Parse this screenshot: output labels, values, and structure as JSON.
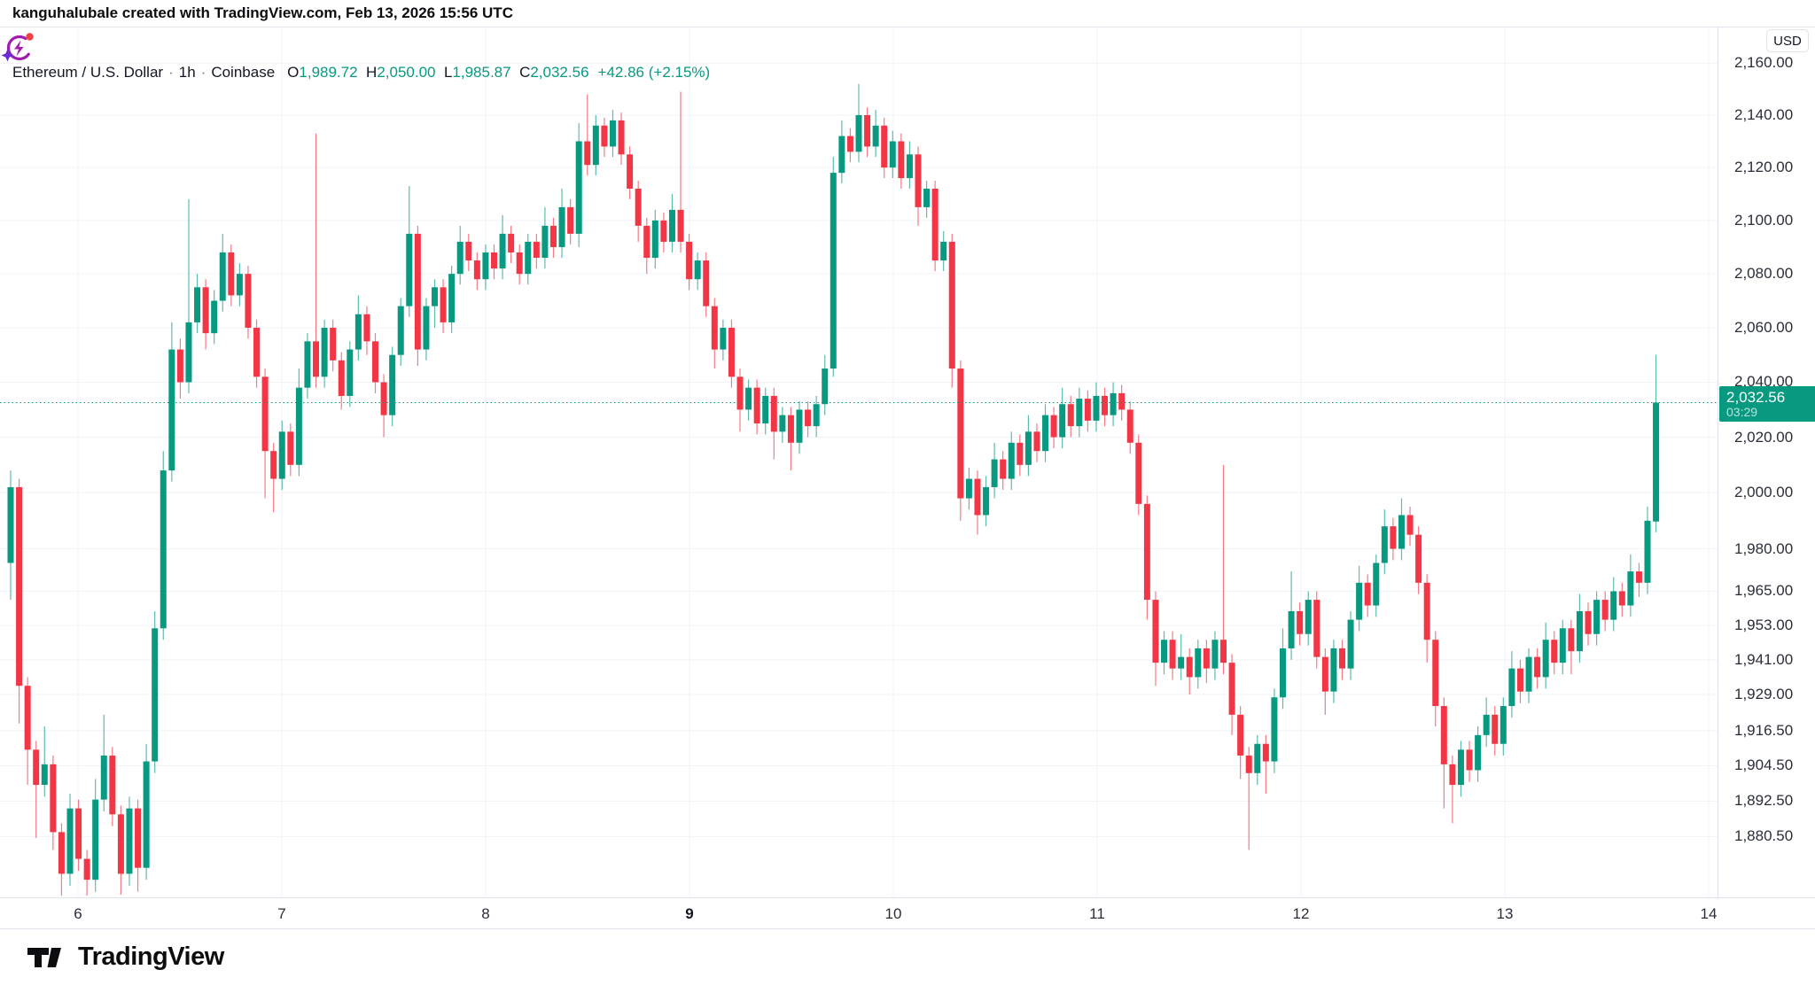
{
  "attribution": "kanguhalubale created with TradingView.com, Feb 13, 2026 15:56 UTC",
  "legend": {
    "symbol": "Ethereum / U.S. Dollar",
    "interval": "1h",
    "exchange": "Coinbase",
    "sep": "·",
    "o_key": "O",
    "o_val": "1,989.72",
    "h_key": "H",
    "h_val": "2,050.00",
    "l_key": "L",
    "l_val": "1,985.87",
    "c_key": "C",
    "c_val": "2,032.56",
    "change": "+42.86 (+2.15%)"
  },
  "price_axis": {
    "currency_label": "USD",
    "last_price_label": "2,032.56",
    "countdown": "03:29"
  },
  "footer": {
    "logo_text": "TradingView"
  },
  "colors": {
    "up": "#089981",
    "down": "#f23645",
    "grid": "#f0f3fa",
    "border": "#e0e3eb",
    "axis_text": "#2a2e39",
    "badge_bg": "#089981",
    "dotted_line": "#089981"
  },
  "chart_data": {
    "type": "candlestick",
    "title": "Ethereum / U.S. Dollar · 1h · Coinbase",
    "scale": "log",
    "legend_position": "top-left",
    "grid": true,
    "last_price": 2032.56,
    "y_ticks": [
      {
        "label": "2,160.00",
        "price": 2160
      },
      {
        "label": "2,140.00",
        "price": 2140
      },
      {
        "label": "2,120.00",
        "price": 2120
      },
      {
        "label": "2,100.00",
        "price": 2100
      },
      {
        "label": "2,080.00",
        "price": 2080
      },
      {
        "label": "2,060.00",
        "price": 2060
      },
      {
        "label": "2,040.00",
        "price": 2040
      },
      {
        "label": "2,020.00",
        "price": 2020
      },
      {
        "label": "2,000.00",
        "price": 2000
      },
      {
        "label": "1,980.00",
        "price": 1980
      },
      {
        "label": "1,965.00",
        "price": 1965
      },
      {
        "label": "1,953.00",
        "price": 1953
      },
      {
        "label": "1,941.00",
        "price": 1941
      },
      {
        "label": "1,929.00",
        "price": 1929
      },
      {
        "label": "1,916.50",
        "price": 1916.5
      },
      {
        "label": "1,904.50",
        "price": 1904.5
      },
      {
        "label": "1,892.50",
        "price": 1892.5
      },
      {
        "label": "1,880.50",
        "price": 1880.5
      }
    ],
    "x_ticks": [
      {
        "label": "6",
        "bold": false
      },
      {
        "label": "7",
        "bold": false
      },
      {
        "label": "8",
        "bold": false
      },
      {
        "label": "9",
        "bold": true
      },
      {
        "label": "10",
        "bold": false
      },
      {
        "label": "11",
        "bold": false
      },
      {
        "label": "12",
        "bold": false
      },
      {
        "label": "13",
        "bold": false
      },
      {
        "label": "14",
        "bold": false
      }
    ],
    "candles": [
      [
        1975,
        2008,
        1962,
        2002
      ],
      [
        2002,
        2005,
        1919,
        1932
      ],
      [
        1932,
        1935,
        1898,
        1910
      ],
      [
        1910,
        1913,
        1880,
        1898
      ],
      [
        1898,
        1918,
        1894,
        1905
      ],
      [
        1905,
        1908,
        1876,
        1882
      ],
      [
        1882,
        1885,
        1860,
        1868
      ],
      [
        1868,
        1895,
        1864,
        1890
      ],
      [
        1890,
        1893,
        1869,
        1873
      ],
      [
        1873,
        1876,
        1858,
        1866
      ],
      [
        1866,
        1900,
        1862,
        1893
      ],
      [
        1893,
        1922,
        1889,
        1908
      ],
      [
        1908,
        1911,
        1884,
        1888
      ],
      [
        1888,
        1891,
        1861,
        1868
      ],
      [
        1868,
        1894,
        1864,
        1890
      ],
      [
        1890,
        1893,
        1862,
        1870
      ],
      [
        1870,
        1912,
        1866,
        1906
      ],
      [
        1906,
        1958,
        1902,
        1952
      ],
      [
        1952,
        2015,
        1948,
        2008
      ],
      [
        2008,
        2062,
        2004,
        2052
      ],
      [
        2052,
        2056,
        2034,
        2040
      ],
      [
        2040,
        2108,
        2036,
        2062
      ],
      [
        2062,
        2080,
        2058,
        2075
      ],
      [
        2075,
        2078,
        2052,
        2058
      ],
      [
        2058,
        2074,
        2054,
        2070
      ],
      [
        2070,
        2095,
        2066,
        2088
      ],
      [
        2088,
        2091,
        2068,
        2072
      ],
      [
        2072,
        2084,
        2068,
        2080
      ],
      [
        2080,
        2083,
        2056,
        2060
      ],
      [
        2060,
        2063,
        2038,
        2042
      ],
      [
        2042,
        2045,
        1998,
        2015
      ],
      [
        2015,
        2018,
        1993,
        2005
      ],
      [
        2005,
        2026,
        2001,
        2022
      ],
      [
        2022,
        2025,
        2006,
        2010
      ],
      [
        2010,
        2045,
        2006,
        2038
      ],
      [
        2038,
        2058,
        2034,
        2055
      ],
      [
        2055,
        2133,
        2038,
        2042
      ],
      [
        2042,
        2063,
        2038,
        2060
      ],
      [
        2060,
        2063,
        2044,
        2048
      ],
      [
        2048,
        2051,
        2030,
        2035
      ],
      [
        2035,
        2055,
        2031,
        2052
      ],
      [
        2052,
        2072,
        2048,
        2065
      ],
      [
        2065,
        2068,
        2050,
        2055
      ],
      [
        2055,
        2058,
        2036,
        2040
      ],
      [
        2040,
        2043,
        2020,
        2028
      ],
      [
        2028,
        2053,
        2024,
        2050
      ],
      [
        2050,
        2071,
        2046,
        2068
      ],
      [
        2068,
        2113,
        2064,
        2095
      ],
      [
        2095,
        2098,
        2046,
        2052
      ],
      [
        2052,
        2071,
        2048,
        2068
      ],
      [
        2068,
        2078,
        2060,
        2075
      ],
      [
        2075,
        2078,
        2058,
        2062
      ],
      [
        2062,
        2083,
        2058,
        2080
      ],
      [
        2080,
        2098,
        2076,
        2092
      ],
      [
        2092,
        2095,
        2081,
        2085
      ],
      [
        2085,
        2088,
        2074,
        2078
      ],
      [
        2078,
        2091,
        2074,
        2088
      ],
      [
        2088,
        2091,
        2078,
        2082
      ],
      [
        2082,
        2102,
        2078,
        2095
      ],
      [
        2095,
        2098,
        2084,
        2088
      ],
      [
        2088,
        2091,
        2076,
        2080
      ],
      [
        2080,
        2095,
        2076,
        2092
      ],
      [
        2092,
        2095,
        2082,
        2086
      ],
      [
        2086,
        2105,
        2082,
        2098
      ],
      [
        2098,
        2101,
        2086,
        2090
      ],
      [
        2090,
        2112,
        2086,
        2105
      ],
      [
        2105,
        2108,
        2091,
        2095
      ],
      [
        2095,
        2137,
        2090,
        2130
      ],
      [
        2130,
        2148,
        2117,
        2121
      ],
      [
        2121,
        2140,
        2117,
        2136
      ],
      [
        2136,
        2139,
        2124,
        2128
      ],
      [
        2128,
        2142,
        2124,
        2138
      ],
      [
        2138,
        2141,
        2121,
        2125
      ],
      [
        2125,
        2128,
        2108,
        2112
      ],
      [
        2112,
        2115,
        2092,
        2098
      ],
      [
        2098,
        2101,
        2080,
        2086
      ],
      [
        2086,
        2104,
        2082,
        2100
      ],
      [
        2100,
        2103,
        2088,
        2092
      ],
      [
        2092,
        2110,
        2088,
        2104
      ],
      [
        2104,
        2149,
        2088,
        2092
      ],
      [
        2092,
        2095,
        2074,
        2078
      ],
      [
        2078,
        2088,
        2074,
        2085
      ],
      [
        2085,
        2088,
        2064,
        2068
      ],
      [
        2068,
        2071,
        2045,
        2052
      ],
      [
        2052,
        2063,
        2048,
        2060
      ],
      [
        2060,
        2063,
        2038,
        2042
      ],
      [
        2042,
        2045,
        2022,
        2030
      ],
      [
        2030,
        2041,
        2026,
        2038
      ],
      [
        2038,
        2041,
        2021,
        2025
      ],
      [
        2025,
        2038,
        2021,
        2035
      ],
      [
        2035,
        2038,
        2012,
        2022
      ],
      [
        2022,
        2031,
        2018,
        2028
      ],
      [
        2028,
        2031,
        2008,
        2018
      ],
      [
        2018,
        2033,
        2014,
        2030
      ],
      [
        2030,
        2033,
        2020,
        2024
      ],
      [
        2024,
        2035,
        2020,
        2032
      ],
      [
        2032,
        2050,
        2028,
        2045
      ],
      [
        2045,
        2124,
        2042,
        2118
      ],
      [
        2118,
        2138,
        2114,
        2132
      ],
      [
        2132,
        2135,
        2122,
        2126
      ],
      [
        2126,
        2152,
        2122,
        2140
      ],
      [
        2140,
        2143,
        2124,
        2128
      ],
      [
        2128,
        2142,
        2124,
        2136
      ],
      [
        2136,
        2139,
        2116,
        2120
      ],
      [
        2120,
        2134,
        2116,
        2130
      ],
      [
        2130,
        2133,
        2112,
        2116
      ],
      [
        2116,
        2130,
        2112,
        2125
      ],
      [
        2125,
        2128,
        2098,
        2105
      ],
      [
        2105,
        2115,
        2101,
        2112
      ],
      [
        2112,
        2115,
        2081,
        2085
      ],
      [
        2085,
        2096,
        2081,
        2092
      ],
      [
        2092,
        2095,
        2038,
        2045
      ],
      [
        2045,
        2048,
        1990,
        1998
      ],
      [
        1998,
        2009,
        1994,
        2005
      ],
      [
        2005,
        2008,
        1985,
        1992
      ],
      [
        1992,
        2006,
        1988,
        2002
      ],
      [
        2002,
        2018,
        1998,
        2012
      ],
      [
        2012,
        2015,
        2001,
        2005
      ],
      [
        2005,
        2022,
        2001,
        2018
      ],
      [
        2018,
        2021,
        2006,
        2010
      ],
      [
        2010,
        2028,
        2006,
        2022
      ],
      [
        2022,
        2025,
        2011,
        2015
      ],
      [
        2015,
        2032,
        2011,
        2028
      ],
      [
        2028,
        2031,
        2016,
        2020
      ],
      [
        2020,
        2038,
        2016,
        2032
      ],
      [
        2032,
        2035,
        2020,
        2024
      ],
      [
        2024,
        2038,
        2020,
        2034
      ],
      [
        2034,
        2037,
        2022,
        2026
      ],
      [
        2026,
        2040,
        2022,
        2035
      ],
      [
        2035,
        2038,
        2024,
        2028
      ],
      [
        2028,
        2040,
        2024,
        2036
      ],
      [
        2036,
        2039,
        2026,
        2030
      ],
      [
        2030,
        2033,
        2014,
        2018
      ],
      [
        2018,
        2021,
        1992,
        1996
      ],
      [
        1996,
        1999,
        1955,
        1962
      ],
      [
        1962,
        1965,
        1932,
        1940
      ],
      [
        1940,
        1951,
        1936,
        1948
      ],
      [
        1948,
        1951,
        1934,
        1938
      ],
      [
        1938,
        1950,
        1934,
        1942
      ],
      [
        1942,
        1945,
        1929,
        1935
      ],
      [
        1935,
        1948,
        1931,
        1945
      ],
      [
        1945,
        1948,
        1933,
        1938
      ],
      [
        1938,
        1951,
        1934,
        1948
      ],
      [
        1948,
        2010,
        1936,
        1940
      ],
      [
        1940,
        1943,
        1915,
        1922
      ],
      [
        1922,
        1925,
        1900,
        1908
      ],
      [
        1908,
        1911,
        1876,
        1902
      ],
      [
        1902,
        1915,
        1898,
        1912
      ],
      [
        1912,
        1915,
        1895,
        1906
      ],
      [
        1906,
        1931,
        1902,
        1928
      ],
      [
        1928,
        1952,
        1924,
        1945
      ],
      [
        1945,
        1972,
        1941,
        1958
      ],
      [
        1958,
        1961,
        1946,
        1950
      ],
      [
        1950,
        1965,
        1946,
        1962
      ],
      [
        1962,
        1965,
        1938,
        1942
      ],
      [
        1942,
        1945,
        1922,
        1930
      ],
      [
        1930,
        1948,
        1926,
        1945
      ],
      [
        1945,
        1948,
        1934,
        1938
      ],
      [
        1938,
        1958,
        1934,
        1955
      ],
      [
        1955,
        1974,
        1951,
        1968
      ],
      [
        1968,
        1971,
        1956,
        1960
      ],
      [
        1960,
        1978,
        1956,
        1975
      ],
      [
        1975,
        1994,
        1971,
        1988
      ],
      [
        1988,
        1991,
        1976,
        1980
      ],
      [
        1980,
        1998,
        1976,
        1992
      ],
      [
        1992,
        1995,
        1981,
        1985
      ],
      [
        1985,
        1988,
        1964,
        1968
      ],
      [
        1968,
        1971,
        1940,
        1948
      ],
      [
        1948,
        1951,
        1918,
        1925
      ],
      [
        1925,
        1928,
        1890,
        1905
      ],
      [
        1905,
        1908,
        1885,
        1898
      ],
      [
        1898,
        1913,
        1894,
        1910
      ],
      [
        1910,
        1913,
        1899,
        1903
      ],
      [
        1903,
        1918,
        1899,
        1915
      ],
      [
        1915,
        1928,
        1911,
        1922
      ],
      [
        1922,
        1925,
        1908,
        1912
      ],
      [
        1912,
        1928,
        1908,
        1925
      ],
      [
        1925,
        1944,
        1921,
        1938
      ],
      [
        1938,
        1941,
        1926,
        1930
      ],
      [
        1930,
        1945,
        1926,
        1942
      ],
      [
        1942,
        1945,
        1931,
        1935
      ],
      [
        1935,
        1954,
        1931,
        1948
      ],
      [
        1948,
        1951,
        1936,
        1940
      ],
      [
        1940,
        1955,
        1936,
        1952
      ],
      [
        1952,
        1955,
        1936,
        1944
      ],
      [
        1944,
        1964,
        1940,
        1958
      ],
      [
        1958,
        1961,
        1946,
        1950
      ],
      [
        1950,
        1965,
        1946,
        1962
      ],
      [
        1962,
        1965,
        1951,
        1955
      ],
      [
        1955,
        1970,
        1951,
        1965
      ],
      [
        1965,
        1968,
        1956,
        1960
      ],
      [
        1960,
        1978,
        1956,
        1972
      ],
      [
        1972,
        1975,
        1963,
        1968
      ],
      [
        1968,
        1995,
        1964,
        1990
      ],
      [
        1989.72,
        2050,
        1985.87,
        2032.56
      ]
    ]
  }
}
